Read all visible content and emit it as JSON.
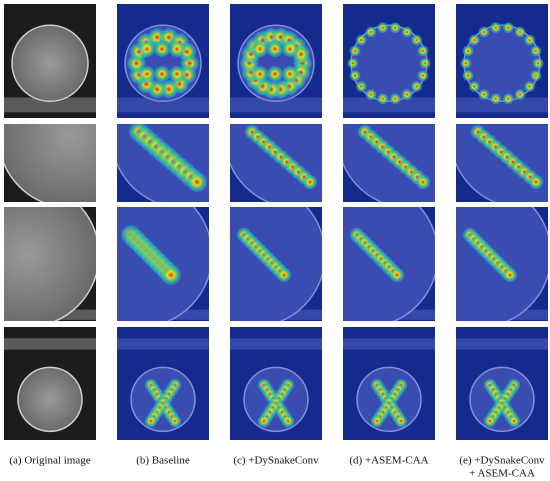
{
  "columns": [
    {
      "lines": [
        "(a) Original image"
      ]
    },
    {
      "lines": [
        "(b) Baseline"
      ]
    },
    {
      "lines": [
        "(c) +DySnakeConv"
      ]
    },
    {
      "lines": [
        "(d) +ASEM-CAA"
      ]
    },
    {
      "lines": [
        "(e) +DySnakeConv",
        "+ ASEM-CAA"
      ]
    }
  ]
}
